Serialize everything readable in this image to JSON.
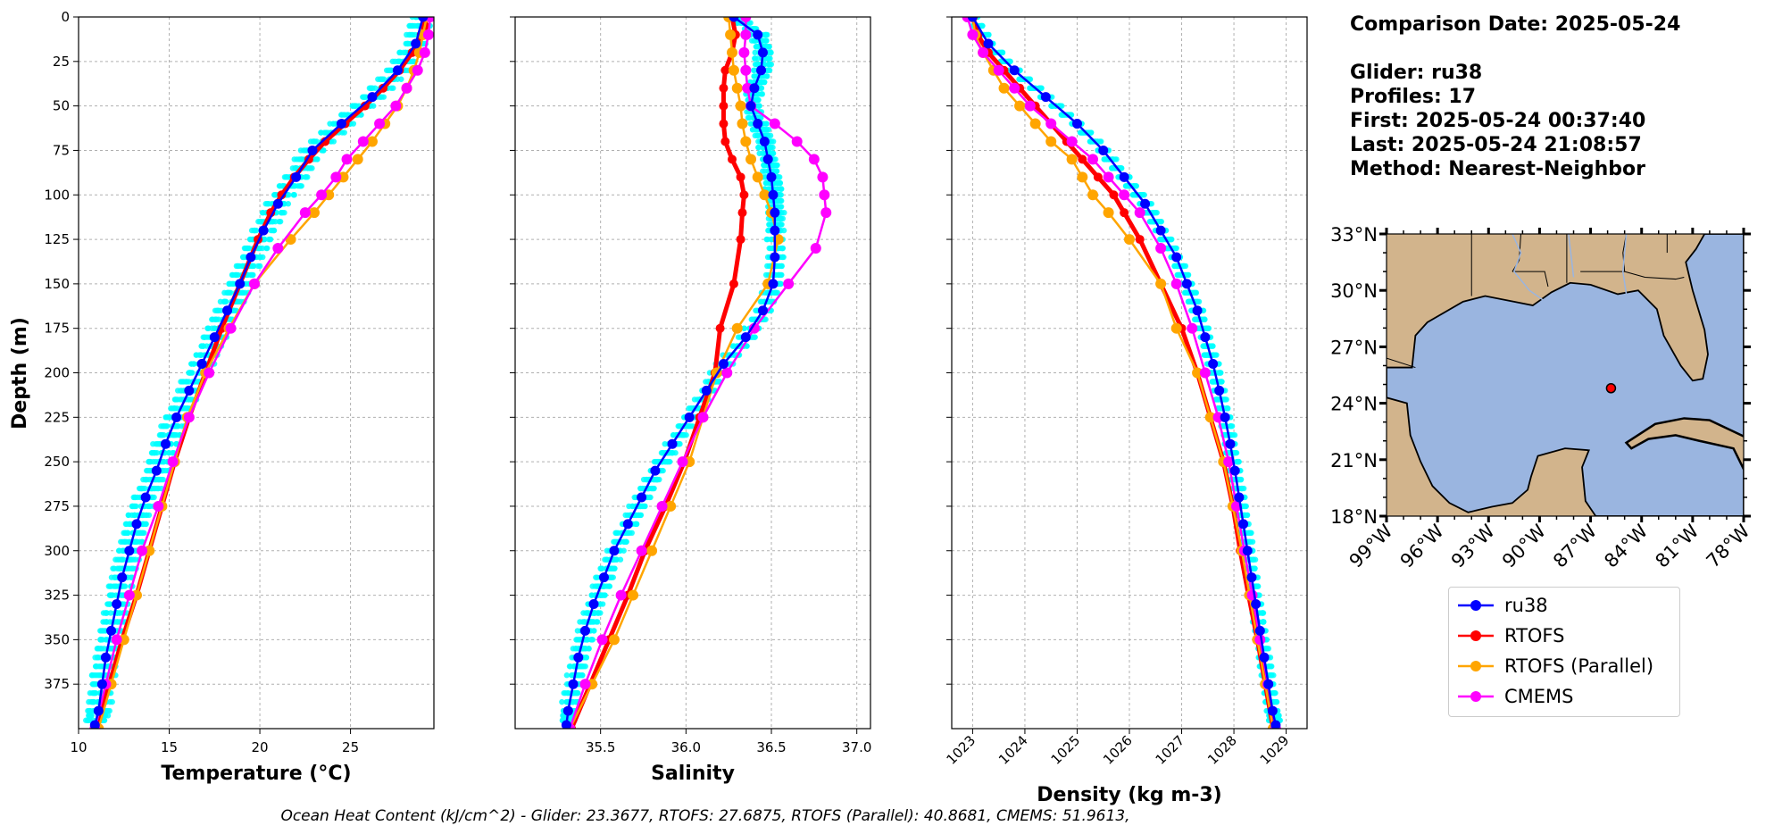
{
  "info": {
    "comparison_date": "Comparison Date: 2025-05-24",
    "glider": "Glider: ru38",
    "profiles": "Profiles: 17",
    "first": "First: 2025-05-24 00:37:40",
    "last": "Last: 2025-05-24 21:08:57",
    "method": "Method: Nearest-Neighbor"
  },
  "footer": "Ocean Heat Content (kJ/cm^2) - Glider: 23.3677,  RTOFS: 27.6875,  RTOFS (Parallel): 40.8681,  CMEMS: 51.9613,",
  "legend": [
    {
      "label": "ru38",
      "color": "#0000ff"
    },
    {
      "label": "RTOFS",
      "color": "#ff0000"
    },
    {
      "label": "RTOFS (Parallel)",
      "color": "#ffa500"
    },
    {
      "label": "CMEMS",
      "color": "#ff00ff"
    }
  ],
  "chart_data": [
    {
      "type": "line",
      "xlabel": "Temperature (°C)",
      "ylabel": "Depth (m)",
      "xlim": [
        10,
        29.6
      ],
      "ylim": [
        400,
        0
      ],
      "xticks": [
        "10",
        "15",
        "20",
        "25"
      ],
      "yticks": [
        "0",
        "25",
        "50",
        "75",
        "100",
        "125",
        "150",
        "175",
        "200",
        "225",
        "250",
        "275",
        "300",
        "325",
        "350",
        "375"
      ],
      "grid": true,
      "series": [
        {
          "name": "ru38",
          "depth": [
            0,
            15,
            30,
            45,
            60,
            75,
            90,
            105,
            120,
            135,
            150,
            165,
            180,
            195,
            210,
            225,
            240,
            255,
            270,
            285,
            300,
            315,
            330,
            345,
            360,
            375,
            390,
            398
          ],
          "values": [
            29.0,
            28.6,
            27.6,
            26.2,
            24.5,
            22.9,
            22.0,
            21.0,
            20.2,
            19.5,
            18.9,
            18.2,
            17.5,
            16.8,
            16.1,
            15.4,
            14.8,
            14.3,
            13.7,
            13.2,
            12.8,
            12.4,
            12.1,
            11.8,
            11.5,
            11.3,
            11.1,
            10.9
          ]
        },
        {
          "name": "RTOFS",
          "depth": [
            0,
            5,
            10,
            20,
            30,
            40,
            50,
            60,
            70,
            80,
            90,
            100,
            110,
            125,
            150,
            175,
            200,
            225,
            250,
            275,
            300,
            325,
            350,
            375,
            400
          ],
          "values": [
            29.2,
            29.1,
            28.9,
            28.4,
            27.7,
            26.8,
            25.8,
            24.7,
            23.6,
            22.7,
            21.9,
            21.2,
            20.6,
            19.9,
            18.9,
            17.9,
            17.0,
            16.1,
            15.3,
            14.6,
            13.9,
            13.2,
            12.4,
            11.7,
            11.0
          ]
        },
        {
          "name": "RTOFS (Parallel)",
          "depth": [
            0,
            10,
            20,
            30,
            40,
            50,
            60,
            70,
            80,
            90,
            100,
            110,
            125,
            150,
            175,
            200,
            225,
            250,
            275,
            300,
            325,
            350,
            375,
            400
          ],
          "values": [
            29.2,
            29.0,
            28.8,
            28.5,
            28.1,
            27.6,
            26.9,
            26.2,
            25.4,
            24.6,
            23.8,
            23.0,
            21.7,
            19.7,
            18.3,
            17.0,
            16.0,
            15.3,
            14.6,
            13.9,
            13.2,
            12.5,
            11.8,
            11.1
          ]
        },
        {
          "name": "CMEMS",
          "depth": [
            0,
            10,
            20,
            30,
            40,
            50,
            60,
            70,
            80,
            90,
            100,
            110,
            130,
            150,
            175,
            200,
            225,
            250,
            275,
            300,
            325,
            350,
            375,
            400
          ],
          "values": [
            29.4,
            29.3,
            29.1,
            28.7,
            28.1,
            27.5,
            26.6,
            25.7,
            24.8,
            24.2,
            23.4,
            22.5,
            21.0,
            19.7,
            18.4,
            17.2,
            16.1,
            15.2,
            14.4,
            13.5,
            12.8,
            12.1,
            11.5,
            10.9
          ]
        }
      ]
    },
    {
      "type": "line",
      "xlabel": "Salinity",
      "xlim": [
        35.0,
        37.08
      ],
      "ylim": [
        400,
        0
      ],
      "xticks": [
        "35.5",
        "36.0",
        "36.5",
        "37.0"
      ],
      "grid": true,
      "series": [
        {
          "name": "ru38",
          "depth": [
            0,
            10,
            20,
            30,
            40,
            50,
            60,
            70,
            80,
            90,
            100,
            110,
            120,
            135,
            150,
            165,
            180,
            195,
            210,
            225,
            240,
            255,
            270,
            285,
            300,
            315,
            330,
            345,
            360,
            375,
            390,
            398
          ],
          "values": [
            36.28,
            36.42,
            36.45,
            36.44,
            36.4,
            36.38,
            36.42,
            36.46,
            36.48,
            36.5,
            36.51,
            36.52,
            36.52,
            36.52,
            36.51,
            36.45,
            36.35,
            36.22,
            36.12,
            36.02,
            35.92,
            35.82,
            35.74,
            35.66,
            35.58,
            35.52,
            35.46,
            35.41,
            35.37,
            35.34,
            35.31,
            35.3
          ]
        },
        {
          "name": "RTOFS",
          "depth": [
            0,
            10,
            20,
            30,
            40,
            50,
            60,
            70,
            80,
            90,
            100,
            110,
            125,
            150,
            175,
            200,
            225,
            250,
            275,
            300,
            325,
            350,
            375,
            400
          ],
          "values": [
            36.27,
            36.29,
            36.27,
            36.23,
            36.22,
            36.22,
            36.22,
            36.23,
            36.27,
            36.32,
            36.34,
            36.33,
            36.32,
            36.28,
            36.2,
            36.17,
            36.08,
            35.99,
            35.88,
            35.76,
            35.66,
            35.55,
            35.44,
            35.33
          ]
        },
        {
          "name": "RTOFS (Parallel)",
          "depth": [
            0,
            10,
            20,
            30,
            40,
            50,
            60,
            70,
            80,
            90,
            100,
            110,
            125,
            150,
            175,
            200,
            225,
            250,
            275,
            300,
            325,
            350,
            375,
            400
          ],
          "values": [
            36.25,
            36.26,
            36.27,
            36.28,
            36.3,
            36.32,
            36.33,
            36.35,
            36.38,
            36.42,
            36.46,
            36.5,
            36.54,
            36.48,
            36.3,
            36.18,
            36.1,
            36.02,
            35.91,
            35.8,
            35.69,
            35.58,
            35.45,
            35.32
          ]
        },
        {
          "name": "CMEMS",
          "depth": [
            0,
            10,
            20,
            30,
            40,
            50,
            60,
            70,
            80,
            90,
            100,
            110,
            130,
            150,
            175,
            200,
            225,
            250,
            275,
            300,
            325,
            350,
            375,
            400
          ],
          "values": [
            36.35,
            36.35,
            36.34,
            36.35,
            36.36,
            36.38,
            36.52,
            36.65,
            36.75,
            36.8,
            36.81,
            36.82,
            36.76,
            36.6,
            36.4,
            36.24,
            36.1,
            35.98,
            35.86,
            35.74,
            35.62,
            35.51,
            35.41,
            35.32
          ]
        }
      ]
    },
    {
      "type": "line",
      "xlabel": "Density (kg m-3)",
      "xlim": [
        1022.6,
        1029.4
      ],
      "ylim": [
        400,
        0
      ],
      "xticks": [
        "1023",
        "1024",
        "1025",
        "1026",
        "1027",
        "1028",
        "1029"
      ],
      "grid": true,
      "series": [
        {
          "name": "ru38",
          "depth": [
            0,
            15,
            30,
            45,
            60,
            75,
            90,
            105,
            120,
            135,
            150,
            165,
            180,
            195,
            210,
            225,
            240,
            255,
            270,
            285,
            300,
            315,
            330,
            345,
            360,
            375,
            390,
            398
          ],
          "values": [
            1023.0,
            1023.3,
            1023.8,
            1024.4,
            1025.0,
            1025.5,
            1025.9,
            1026.3,
            1026.6,
            1026.9,
            1027.1,
            1027.3,
            1027.45,
            1027.6,
            1027.72,
            1027.83,
            1027.93,
            1028.02,
            1028.1,
            1028.18,
            1028.26,
            1028.34,
            1028.42,
            1028.5,
            1028.58,
            1028.66,
            1028.74,
            1028.8
          ]
        },
        {
          "name": "RTOFS",
          "depth": [
            0,
            10,
            20,
            30,
            40,
            50,
            60,
            70,
            80,
            90,
            100,
            110,
            125,
            150,
            175,
            200,
            225,
            250,
            275,
            300,
            325,
            350,
            375,
            400
          ],
          "values": [
            1023.0,
            1023.1,
            1023.3,
            1023.6,
            1023.9,
            1024.2,
            1024.5,
            1024.8,
            1025.1,
            1025.4,
            1025.7,
            1025.9,
            1026.2,
            1026.6,
            1027.0,
            1027.3,
            1027.55,
            1027.8,
            1027.98,
            1028.12,
            1028.28,
            1028.45,
            1028.6,
            1028.75
          ]
        },
        {
          "name": "RTOFS (Parallel)",
          "depth": [
            0,
            10,
            20,
            30,
            40,
            50,
            60,
            70,
            80,
            90,
            100,
            110,
            125,
            150,
            175,
            200,
            225,
            250,
            275,
            300,
            325,
            350,
            375,
            400
          ],
          "values": [
            1023.0,
            1023.05,
            1023.2,
            1023.4,
            1023.6,
            1023.9,
            1024.2,
            1024.5,
            1024.9,
            1025.1,
            1025.3,
            1025.6,
            1026.0,
            1026.6,
            1026.9,
            1027.3,
            1027.55,
            1027.8,
            1027.98,
            1028.15,
            1028.3,
            1028.45,
            1028.6,
            1028.75
          ]
        },
        {
          "name": "CMEMS",
          "depth": [
            0,
            10,
            20,
            30,
            40,
            50,
            60,
            70,
            80,
            90,
            100,
            110,
            130,
            150,
            175,
            200,
            225,
            250,
            275,
            300,
            325,
            350,
            375,
            400
          ],
          "values": [
            1022.9,
            1023.0,
            1023.2,
            1023.5,
            1023.8,
            1024.1,
            1024.5,
            1024.9,
            1025.3,
            1025.6,
            1025.9,
            1026.2,
            1026.6,
            1026.9,
            1027.2,
            1027.45,
            1027.7,
            1027.9,
            1028.05,
            1028.2,
            1028.35,
            1028.5,
            1028.65,
            1028.8
          ]
        }
      ]
    },
    {
      "type": "map",
      "lat_ticks": [
        "33°N",
        "30°N",
        "27°N",
        "24°N",
        "21°N",
        "18°N"
      ],
      "lon_ticks": [
        "99°W",
        "96°W",
        "93°W",
        "90°W",
        "87°W",
        "84°W",
        "81°W",
        "78°W"
      ],
      "lat_range": [
        18,
        33
      ],
      "lon_range": [
        -99,
        -78
      ],
      "glider_position": {
        "lat": 24.8,
        "lon": -85.8
      },
      "colors": {
        "land": "#d2b48c",
        "ocean": "#9ab5e0"
      }
    }
  ]
}
